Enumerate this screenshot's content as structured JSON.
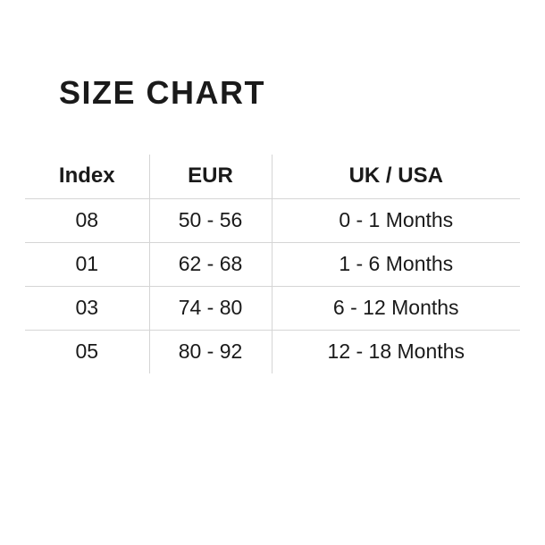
{
  "page": {
    "title": "SIZE CHART",
    "background_color": "#ffffff",
    "text_color": "#1a1a1a",
    "grid_line_color": "#d5d5d5"
  },
  "chart_data": {
    "type": "table",
    "title": "SIZE CHART",
    "columns": [
      "Index",
      "EUR",
      "UK / USA"
    ],
    "rows": [
      [
        "08",
        "50 - 56",
        "0 - 1 Months"
      ],
      [
        "01",
        "62 - 68",
        "1 - 6 Months"
      ],
      [
        "03",
        "74 - 80",
        "6 - 12 Months"
      ],
      [
        "05",
        "80 - 92",
        "12 - 18 Months"
      ]
    ],
    "layout": {
      "grid": "partial",
      "vertical_separators": true,
      "bottom_border_on_last_row": false
    }
  }
}
